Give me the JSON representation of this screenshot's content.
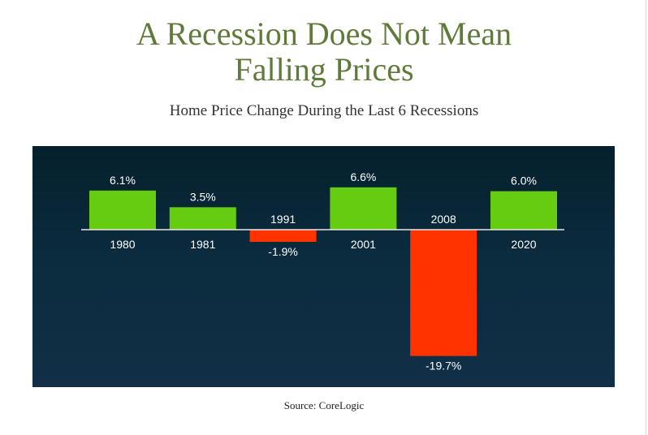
{
  "title_line1": "A Recession Does Not Mean",
  "title_line2": "Falling Prices",
  "subtitle": "Home Price Change During the Last 6 Recessions",
  "source": "Source: CoreLogic",
  "colors": {
    "positive": "#66cc11",
    "negative": "#ff3300",
    "title": "#5f7a3a",
    "panel": "#0b2b3e"
  },
  "chart_data": {
    "type": "bar",
    "categories": [
      "1980",
      "1981",
      "1991",
      "2001",
      "2008",
      "2020"
    ],
    "values": [
      6.1,
      3.5,
      -1.9,
      6.6,
      -19.7,
      6.0
    ],
    "value_labels": [
      "6.1%",
      "3.5%",
      "-1.9%",
      "6.6%",
      "-19.7%",
      "6.0%"
    ],
    "title": "Home Price Change During the Last 6 Recessions",
    "xlabel": "",
    "ylabel": "",
    "ylim": [
      -19.7,
      6.6
    ],
    "grid": false,
    "legend": "none"
  }
}
